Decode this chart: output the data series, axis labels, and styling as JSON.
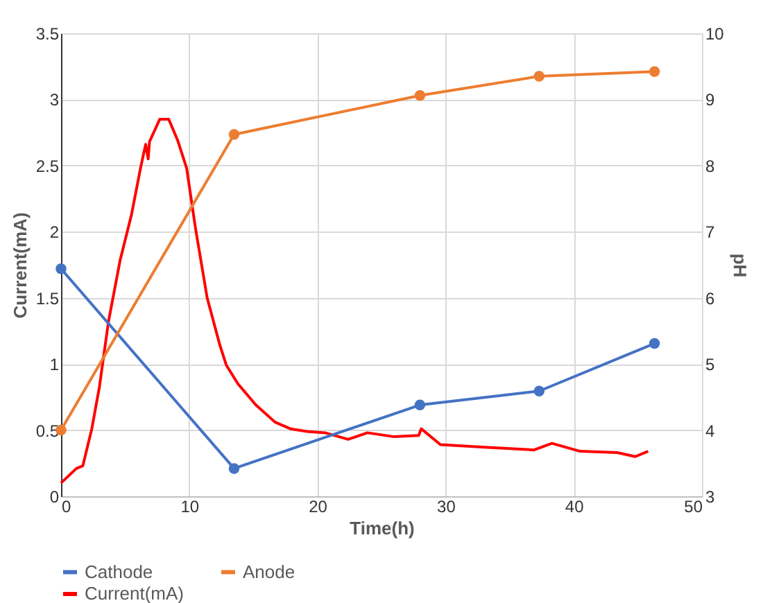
{
  "chart_data": {
    "type": "line",
    "xlabel": "Time(h)",
    "ylabel": "Current(mA)",
    "y2label": "pH",
    "xlim": [
      0,
      50
    ],
    "xticks": [
      0,
      10,
      20,
      30,
      40,
      50
    ],
    "ylim": [
      0,
      3.5
    ],
    "yticks": [
      0,
      0.5,
      1,
      1.5,
      2,
      2.5,
      3,
      3.5
    ],
    "y2lim": [
      3,
      10
    ],
    "y2ticks": [
      3,
      4,
      5,
      6,
      7,
      8,
      9,
      10
    ],
    "grid": true,
    "legend": "bottom",
    "marker": "circle",
    "line_style": "solid",
    "series": [
      {
        "name": "Cathode",
        "color": "#4472c4",
        "axis": "y2",
        "x": [
          0,
          13.5,
          28,
          37.3,
          46.3
        ],
        "values": [
          6.44,
          3.42,
          4.38,
          4.59,
          5.31
        ]
      },
      {
        "name": "Anode",
        "color": "#ed7d31",
        "axis": "y2",
        "x": [
          0,
          13.5,
          28,
          37.3,
          46.3
        ],
        "values": [
          4.0,
          8.47,
          9.06,
          9.35,
          9.42
        ]
      },
      {
        "name": "Current(mA)",
        "color": "#ff0000",
        "marker": "none",
        "x": [
          0,
          1.2,
          1.7,
          2.4,
          3.0,
          3.7,
          4.6,
          5.5,
          6.2,
          6.6,
          6.8,
          6.9,
          7.7,
          8.4,
          9.1,
          9.8,
          10.5,
          11.4,
          12.4,
          12.9,
          13.8,
          15.2,
          16.7,
          17.9,
          19.2,
          20.6,
          22.4,
          23.9,
          26.0,
          27.9,
          28.1,
          29.6,
          33.3,
          36.9,
          38.3,
          40.5,
          43.4,
          44.8,
          45.8
        ],
        "values": [
          0.1,
          0.21,
          0.23,
          0.51,
          0.83,
          1.32,
          1.78,
          2.13,
          2.48,
          2.66,
          2.55,
          2.68,
          2.85,
          2.85,
          2.69,
          2.48,
          2.02,
          1.5,
          1.14,
          0.99,
          0.85,
          0.69,
          0.56,
          0.51,
          0.49,
          0.48,
          0.43,
          0.48,
          0.45,
          0.46,
          0.51,
          0.39,
          0.37,
          0.35,
          0.4,
          0.34,
          0.33,
          0.3,
          0.34
        ]
      }
    ]
  }
}
